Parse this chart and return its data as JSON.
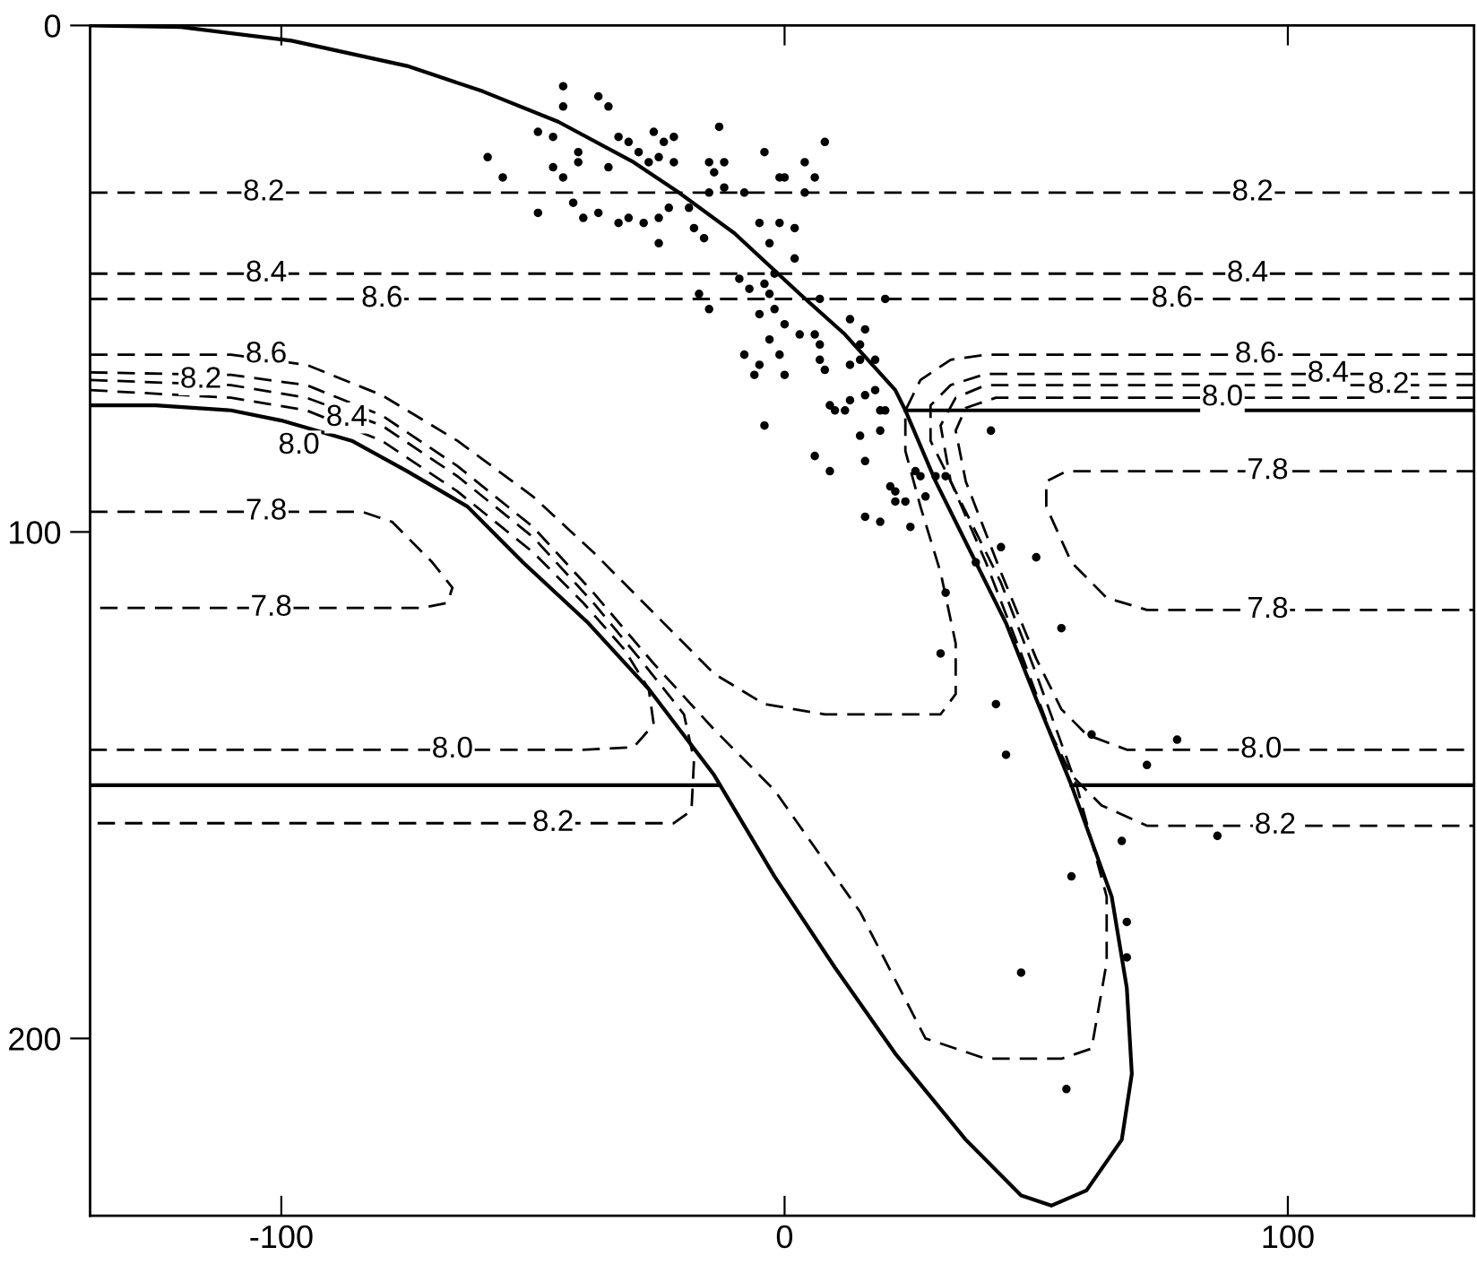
{
  "chart_data": {
    "type": "line",
    "xlim": [
      -138,
      137
    ],
    "ylim": [
      235,
      0
    ],
    "xticks": [
      -100,
      0,
      100
    ],
    "yticks": [
      0,
      100,
      200
    ],
    "series": [
      {
        "color": "#000000",
        "line_style": "solid",
        "x": [
          -138,
          -120,
          -98,
          -75,
          -60,
          -45,
          -30,
          -21,
          -10,
          3,
          12,
          22,
          24,
          30,
          37,
          44,
          50,
          57,
          65,
          68,
          69,
          67,
          60,
          53,
          47,
          36,
          22,
          10,
          -2,
          -14,
          -27,
          -39,
          -52,
          -63,
          -75,
          -86,
          -100,
          -110,
          -125,
          -138
        ],
        "values": [
          0,
          0.3,
          3,
          8,
          13,
          19,
          27,
          33,
          41,
          53,
          61,
          72,
          76,
          90,
          104,
          118,
          133,
          150,
          172,
          190,
          207,
          220,
          230,
          233,
          231,
          220,
          203,
          186,
          168,
          148,
          131,
          118,
          106,
          95,
          88,
          82,
          78,
          76,
          75,
          75
        ]
      },
      {
        "color": "#000000",
        "line_style": "solid",
        "x": [
          24,
          137
        ],
        "values": [
          76,
          76
        ]
      },
      {
        "color": "#000000",
        "line_style": "solid",
        "x": [
          -138,
          -13
        ],
        "values": [
          150,
          150
        ]
      },
      {
        "color": "#000000",
        "line_style": "solid",
        "x": [
          57,
          137
        ],
        "values": [
          150,
          150
        ]
      },
      {
        "color": "#000000",
        "line_style": "dashed",
        "x": [
          -138,
          137
        ],
        "values": [
          33,
          33
        ]
      },
      {
        "color": "#000000",
        "line_style": "dashed",
        "x": [
          -138,
          137
        ],
        "values": [
          49,
          49
        ]
      },
      {
        "color": "#000000",
        "line_style": "dashed",
        "x": [
          -138,
          137
        ],
        "values": [
          54,
          54
        ]
      },
      {
        "color": "#000000",
        "line_style": "dashed",
        "x": [
          -138,
          -110,
          -95,
          -80,
          -65,
          -50,
          -38,
          -26,
          -14,
          -4,
          8,
          22,
          31,
          34,
          34,
          31,
          27,
          24,
          24,
          27,
          33,
          40,
          137
        ],
        "values": [
          65,
          65,
          67,
          73,
          82,
          93,
          104,
          116,
          128,
          134,
          136,
          136,
          136,
          132,
          122,
          108,
          95,
          84,
          76,
          70,
          66,
          65,
          65
        ]
      },
      {
        "color": "#000000",
        "line_style": "dashed",
        "x": [
          -138,
          -110,
          -95,
          -80,
          -65,
          -50,
          -38,
          -26,
          -14,
          -2,
          15,
          28,
          40,
          55,
          61,
          64,
          64,
          58,
          50,
          43,
          35,
          29,
          29,
          33,
          40,
          137
        ],
        "values": [
          68.5,
          69,
          71,
          77,
          87,
          99,
          112,
          126,
          139,
          151,
          175,
          200,
          204,
          204,
          202,
          185,
          172,
          150,
          128,
          110,
          94,
          82,
          75,
          71,
          68.8,
          68.8
        ]
      },
      {
        "color": "#000000",
        "line_style": "dashed",
        "x": [
          -138,
          -110,
          -95,
          -80,
          -65,
          -50,
          -38,
          -28,
          -20,
          -18,
          -18.5,
          -22,
          -138
        ],
        "values": [
          70,
          71,
          73.5,
          79,
          89,
          101,
          114,
          126,
          136,
          145,
          155,
          157.5,
          157.5
        ]
      },
      {
        "color": "#000000",
        "line_style": "dashed",
        "x": [
          -138,
          -110,
          -95,
          -80,
          -65,
          -50,
          -40,
          -32,
          -27,
          -26,
          -30,
          -40,
          -138
        ],
        "values": [
          72,
          73.5,
          76,
          82,
          92,
          104,
          114,
          123,
          131,
          138,
          142.5,
          143,
          143
        ]
      },
      {
        "color": "#000000",
        "line_style": "dashed",
        "x": [
          137,
          40,
          34,
          31,
          33,
          40,
          47,
          53,
          57,
          63,
          72,
          137
        ],
        "values": [
          71,
          71,
          73.5,
          79,
          90,
          106,
          124,
          140,
          148,
          154,
          158,
          158
        ]
      },
      {
        "color": "#000000",
        "line_style": "dashed",
        "x": [
          137,
          42,
          36,
          34,
          36,
          43,
          50,
          55,
          60,
          68,
          137
        ],
        "values": [
          73.5,
          73.5,
          75.5,
          80,
          90,
          108,
          125,
          135,
          140,
          143,
          143
        ]
      },
      {
        "color": "#000000",
        "line_style": "dashed",
        "x": [
          -138,
          -84,
          -78,
          -70,
          -66,
          -67,
          -72,
          -138
        ],
        "values": [
          96,
          96,
          98,
          106,
          111,
          114,
          115,
          115
        ]
      },
      {
        "color": "#000000",
        "line_style": "dashed",
        "x": [
          137,
          56,
          52,
          52,
          57,
          64,
          72,
          137
        ],
        "values": [
          88,
          88,
          90,
          95,
          106,
          113,
          115.4,
          115.4
        ]
      },
      {
        "type": "scatter",
        "color": "#000000",
        "marker": "circle",
        "x": [
          -59,
          -56,
          -49,
          -46,
          -44,
          -44,
          -37,
          -35,
          -49,
          -46,
          -44,
          -41,
          -41,
          -42,
          -40,
          -37,
          -35,
          -33,
          -31,
          -33,
          -31,
          -29,
          -26,
          -24,
          -22,
          -25,
          -22,
          -27,
          -28,
          -25,
          -25,
          -23,
          -19,
          -18,
          -16,
          -15,
          -13,
          -12,
          -14,
          -15,
          -12,
          -8,
          -4,
          -1,
          0,
          -5,
          -1,
          2,
          -3,
          2,
          -9,
          -7,
          -4,
          -2,
          -17,
          -15,
          -3,
          -2,
          -5,
          0,
          3,
          -8,
          -5,
          -3,
          -1,
          -6,
          0,
          -4,
          4,
          6,
          8,
          4,
          7,
          20,
          13,
          16,
          15,
          6,
          7,
          7,
          8,
          13,
          15,
          18,
          18,
          9,
          10,
          12,
          13,
          16,
          19,
          20,
          41,
          15,
          19,
          16,
          9,
          21,
          22,
          24,
          26,
          27,
          28,
          22,
          16,
          19,
          25,
          30,
          32,
          38,
          43,
          50,
          32,
          6,
          55,
          31,
          42,
          44,
          61,
          78,
          72,
          86,
          67,
          57,
          68,
          68,
          47,
          56
        ],
        "values": [
          26,
          30,
          21,
          22,
          12,
          16,
          14,
          16,
          37,
          28,
          30,
          25,
          27,
          35,
          38,
          37,
          28,
          39,
          38,
          22,
          23,
          25,
          21,
          23,
          22,
          26,
          27,
          27,
          39,
          38,
          43,
          36,
          36,
          40,
          42,
          27,
          20,
          27,
          29,
          33,
          32,
          33,
          25,
          30,
          30,
          39,
          39,
          40,
          43,
          46,
          50,
          52,
          51,
          49,
          53,
          56,
          53,
          56,
          57,
          59,
          61,
          65,
          67,
          62,
          65,
          69,
          69,
          79,
          27,
          30,
          23,
          33,
          54,
          54,
          58,
          60,
          63,
          61,
          63,
          66,
          68,
          67,
          66,
          66,
          72,
          75,
          76,
          76,
          74,
          73,
          76,
          76,
          80,
          81,
          80,
          86,
          88,
          91,
          92,
          94,
          88,
          89,
          93,
          94,
          97,
          98,
          99,
          89,
          89,
          106,
          103,
          105,
          112,
          85,
          119,
          124,
          134,
          144,
          140,
          141,
          146,
          160,
          161,
          168,
          177,
          184,
          187,
          210
        ]
      }
    ],
    "annotations": [
      {
        "text": "8.2",
        "x": -103.5,
        "y": 33
      },
      {
        "text": "8.2",
        "x": 93,
        "y": 33
      },
      {
        "text": "8.4",
        "x": -103,
        "y": 49
      },
      {
        "text": "8.4",
        "x": 92,
        "y": 49
      },
      {
        "text": "8.6",
        "x": -80,
        "y": 54
      },
      {
        "text": "8.6",
        "x": 77,
        "y": 54
      },
      {
        "text": "8.6",
        "x": -103,
        "y": 65
      },
      {
        "text": "8.2",
        "x": -116,
        "y": 70
      },
      {
        "text": "8.4",
        "x": -87,
        "y": 77.5
      },
      {
        "text": "8.0",
        "x": -96.5,
        "y": 83
      },
      {
        "text": "8.6",
        "x": 93.6,
        "y": 65
      },
      {
        "text": "8.4",
        "x": 108,
        "y": 68.8
      },
      {
        "text": "8.2",
        "x": 120,
        "y": 71
      },
      {
        "text": "8.0",
        "x": 87,
        "y": 73.5
      },
      {
        "text": "7.8",
        "x": -103,
        "y": 96
      },
      {
        "text": "7.8",
        "x": -102,
        "y": 115
      },
      {
        "text": "7.8",
        "x": 96,
        "y": 88
      },
      {
        "text": "7.8",
        "x": 96,
        "y": 115.4
      },
      {
        "text": "8.0",
        "x": -66,
        "y": 143
      },
      {
        "text": "8.2",
        "x": -46,
        "y": 157.5
      },
      {
        "text": "8.0",
        "x": 94.7,
        "y": 143
      },
      {
        "text": "8.2",
        "x": 97.5,
        "y": 158
      }
    ]
  }
}
